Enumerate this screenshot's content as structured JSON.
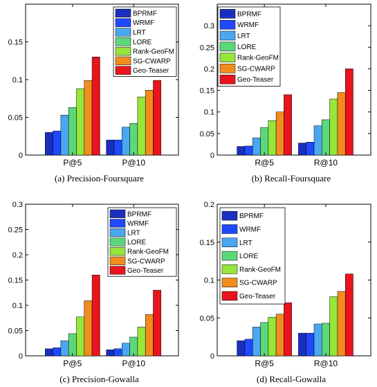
{
  "series_colors": [
    "#1a2fbf",
    "#1f49ff",
    "#4aa8f0",
    "#5cd87a",
    "#96e63c",
    "#f28c1e",
    "#e8141e"
  ],
  "chart_data": [
    {
      "type": "bar",
      "caption": "(a) Precision-Foursquare",
      "categories": [
        "P@5",
        "P@10"
      ],
      "ylim": [
        0,
        0.2
      ],
      "yticks": [
        "0",
        "0.05",
        "0.1",
        "0.15"
      ],
      "ytick_values": [
        0,
        0.05,
        0.1,
        0.15
      ],
      "legend_position": "top-right",
      "series": [
        {
          "name": "BPRMF",
          "values": [
            0.03,
            0.02
          ]
        },
        {
          "name": "WRMF",
          "values": [
            0.032,
            0.02
          ]
        },
        {
          "name": "LRT",
          "values": [
            0.053,
            0.037
          ]
        },
        {
          "name": "LORE",
          "values": [
            0.063,
            0.042
          ]
        },
        {
          "name": "Rank-GeoFM",
          "values": [
            0.088,
            0.077
          ]
        },
        {
          "name": "SG-CWARP",
          "values": [
            0.099,
            0.086
          ]
        },
        {
          "name": "Geo-Teaser",
          "values": [
            0.13,
            0.099
          ]
        }
      ]
    },
    {
      "type": "bar",
      "caption": "(b) Recall-Foursquare",
      "categories": [
        "R@5",
        "R@10"
      ],
      "ylim": [
        0,
        0.35
      ],
      "yticks": [
        "0",
        "0.05",
        "0.1",
        "0.15",
        "0.2",
        "0.25",
        "0.3"
      ],
      "ytick_values": [
        0,
        0.05,
        0.1,
        0.15,
        0.2,
        0.25,
        0.3
      ],
      "legend_position": "top-right",
      "series": [
        {
          "name": "BPRMF",
          "values": [
            0.02,
            0.028
          ]
        },
        {
          "name": "WRMF",
          "values": [
            0.021,
            0.03
          ]
        },
        {
          "name": "LRT",
          "values": [
            0.04,
            0.068
          ]
        },
        {
          "name": "LORE",
          "values": [
            0.064,
            0.082
          ]
        },
        {
          "name": "Rank-GeoFM",
          "values": [
            0.08,
            0.13
          ]
        },
        {
          "name": "SG-CWARP",
          "values": [
            0.1,
            0.145
          ]
        },
        {
          "name": "Geo-Teaser",
          "values": [
            0.14,
            0.2
          ]
        }
      ]
    },
    {
      "type": "bar",
      "caption": "(c) Precision-Gowalla",
      "categories": [
        "P@5",
        "P@10"
      ],
      "ylim": [
        0,
        0.3
      ],
      "yticks": [
        "0",
        "0.05",
        "0.1",
        "0.15",
        "0.2",
        "0.25",
        "0.3"
      ],
      "ytick_values": [
        0,
        0.05,
        0.1,
        0.15,
        0.2,
        0.25,
        0.3
      ],
      "legend_position": "top-right",
      "series": [
        {
          "name": "BPRMF",
          "values": [
            0.014,
            0.012
          ]
        },
        {
          "name": "WRMF",
          "values": [
            0.016,
            0.014
          ]
        },
        {
          "name": "LRT",
          "values": [
            0.03,
            0.025
          ]
        },
        {
          "name": "LORE",
          "values": [
            0.044,
            0.037
          ]
        },
        {
          "name": "Rank-GeoFM",
          "values": [
            0.077,
            0.057
          ]
        },
        {
          "name": "SG-CWARP",
          "values": [
            0.109,
            0.082
          ]
        },
        {
          "name": "Geo-Teaser",
          "values": [
            0.16,
            0.13
          ]
        }
      ]
    },
    {
      "type": "bar",
      "caption": "(d) Recall-Gowalla",
      "categories": [
        "R@5",
        "R@10"
      ],
      "ylim": [
        0,
        0.2
      ],
      "yticks": [
        "0",
        "0.05",
        "0.1",
        "0.15",
        "0.2"
      ],
      "ytick_values": [
        0,
        0.05,
        0.1,
        0.15,
        0.2
      ],
      "legend_position": "top-right",
      "series": [
        {
          "name": "BPRMF",
          "values": [
            0.02,
            0.03
          ]
        },
        {
          "name": "WRMF",
          "values": [
            0.022,
            0.03
          ]
        },
        {
          "name": "LRT",
          "values": [
            0.038,
            0.042
          ]
        },
        {
          "name": "LORE",
          "values": [
            0.044,
            0.043
          ]
        },
        {
          "name": "Rank-GeoFM",
          "values": [
            0.051,
            0.078
          ]
        },
        {
          "name": "SG-CWARP",
          "values": [
            0.055,
            0.085
          ]
        },
        {
          "name": "Geo-Teaser",
          "values": [
            0.07,
            0.108
          ]
        }
      ]
    }
  ]
}
